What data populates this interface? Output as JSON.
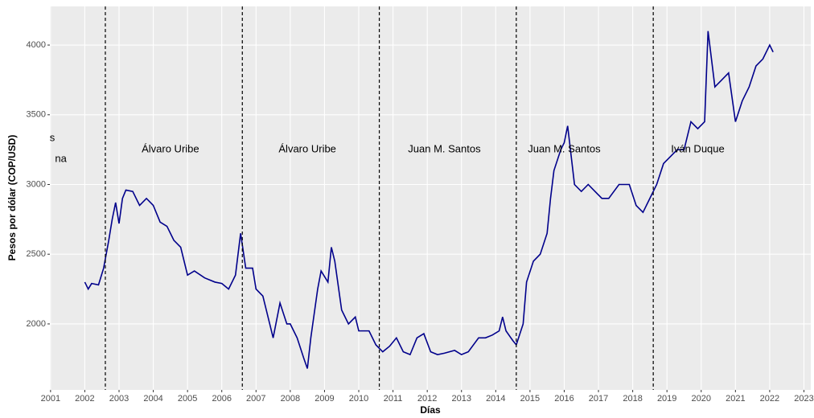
{
  "chart_data": {
    "type": "line",
    "x_label": "Días",
    "y_label": "Pesos por dólar (COP/USD)",
    "xlim": [
      2000.98,
      2023.2
    ],
    "ylim": [
      1527,
      4277
    ],
    "xticks": [
      2001,
      2002,
      2003,
      2004,
      2005,
      2006,
      2007,
      2008,
      2009,
      2010,
      2011,
      2012,
      2013,
      2014,
      2015,
      2016,
      2017,
      2018,
      2019,
      2020,
      2021,
      2022,
      2023
    ],
    "yticks": [
      2000,
      2500,
      3000,
      3500,
      4000
    ],
    "grid": true,
    "vlines": [
      2002.6,
      2006.6,
      2010.6,
      2014.6,
      2018.6
    ],
    "annotations": [
      {
        "text": "s",
        "x": 2001.05,
        "y": 3330
      },
      {
        "text": "na",
        "x": 2001.3,
        "y": 3180
      },
      {
        "text": "Álvaro Uribe",
        "x": 2004.5,
        "y": 3250
      },
      {
        "text": "Álvaro Uribe",
        "x": 2008.5,
        "y": 3250
      },
      {
        "text": "Juan M. Santos",
        "x": 2012.5,
        "y": 3250
      },
      {
        "text": "Juan M. Santos",
        "x": 2016.0,
        "y": 3250
      },
      {
        "text": "Iván Duque",
        "x": 2019.9,
        "y": 3250
      }
    ],
    "x": [
      2002.0,
      2002.1,
      2002.2,
      2002.4,
      2002.55,
      2002.7,
      2002.8,
      2002.9,
      2003.0,
      2003.1,
      2003.2,
      2003.4,
      2003.6,
      2003.8,
      2004.0,
      2004.2,
      2004.4,
      2004.6,
      2004.8,
      2005.0,
      2005.2,
      2005.5,
      2005.8,
      2006.0,
      2006.2,
      2006.4,
      2006.55,
      2006.7,
      2006.9,
      2007.0,
      2007.2,
      2007.4,
      2007.5,
      2007.7,
      2007.9,
      2008.0,
      2008.2,
      2008.4,
      2008.5,
      2008.6,
      2008.8,
      2008.9,
      2009.1,
      2009.2,
      2009.3,
      2009.5,
      2009.7,
      2009.9,
      2010.0,
      2010.3,
      2010.5,
      2010.7,
      2010.9,
      2011.1,
      2011.3,
      2011.5,
      2011.7,
      2011.9,
      2012.1,
      2012.3,
      2012.5,
      2012.8,
      2013.0,
      2013.2,
      2013.5,
      2013.7,
      2013.9,
      2014.1,
      2014.2,
      2014.3,
      2014.5,
      2014.6,
      2014.8,
      2014.9,
      2015.1,
      2015.3,
      2015.5,
      2015.6,
      2015.7,
      2015.9,
      2016.0,
      2016.1,
      2016.3,
      2016.5,
      2016.7,
      2016.9,
      2017.1,
      2017.3,
      2017.6,
      2017.9,
      2018.1,
      2018.3,
      2018.5,
      2018.7,
      2018.9,
      2019.1,
      2019.3,
      2019.5,
      2019.7,
      2019.9,
      2020.1,
      2020.2,
      2020.4,
      2020.6,
      2020.8,
      2021.0,
      2021.2,
      2021.4,
      2021.6,
      2021.8,
      2022.0,
      2022.1
    ],
    "series": [
      {
        "color": "#00008b",
        "values": [
          2300,
          2250,
          2290,
          2280,
          2400,
          2600,
          2750,
          2870,
          2720,
          2900,
          2960,
          2950,
          2850,
          2900,
          2850,
          2730,
          2700,
          2600,
          2550,
          2350,
          2380,
          2330,
          2300,
          2290,
          2250,
          2350,
          2650,
          2400,
          2400,
          2250,
          2200,
          2000,
          1900,
          2150,
          2000,
          2000,
          1900,
          1750,
          1680,
          1900,
          2250,
          2380,
          2300,
          2550,
          2450,
          2100,
          2000,
          2050,
          1950,
          1950,
          1850,
          1800,
          1840,
          1900,
          1800,
          1780,
          1900,
          1930,
          1800,
          1780,
          1790,
          1810,
          1780,
          1800,
          1900,
          1900,
          1920,
          1950,
          2050,
          1950,
          1880,
          1850,
          2000,
          2300,
          2450,
          2500,
          2650,
          2900,
          3100,
          3250,
          3300,
          3420,
          3000,
          2950,
          3000,
          2950,
          2900,
          2900,
          3000,
          3000,
          2850,
          2800,
          2900,
          3000,
          3150,
          3200,
          3250,
          3250,
          3450,
          3400,
          3450,
          4100,
          3700,
          3750,
          3800,
          3450,
          3600,
          3700,
          3850,
          3900,
          4000,
          3950
        ]
      }
    ]
  }
}
